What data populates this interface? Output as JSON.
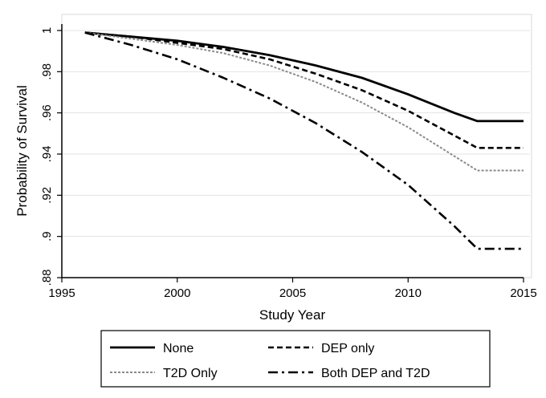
{
  "chart_data": {
    "type": "line",
    "xlabel": "Study Year",
    "ylabel": "Probability of Survival",
    "xlim": [
      1995,
      2015
    ],
    "ylim": [
      0.88,
      1.0
    ],
    "xticks": [
      1995,
      2000,
      2005,
      2010,
      2015
    ],
    "xtick_labels": [
      "1995",
      "2000",
      "2005",
      "2010",
      "2015"
    ],
    "yticks": [
      0.88,
      0.9,
      0.92,
      0.94,
      0.96,
      0.98,
      1.0
    ],
    "ytick_labels": [
      ".88",
      ".9",
      ".92",
      ".94",
      ".96",
      ".98",
      "1"
    ],
    "grid": "horizontal",
    "legend_position": "bottom",
    "series": [
      {
        "name": "None",
        "style": "solid",
        "x": [
          1996,
          1998,
          2000,
          2002,
          2004,
          2006,
          2008,
          2010,
          2012,
          2013,
          2015
        ],
        "y": [
          0.999,
          0.997,
          0.995,
          0.992,
          0.988,
          0.983,
          0.977,
          0.969,
          0.96,
          0.956,
          0.956
        ]
      },
      {
        "name": "DEP only",
        "style": "dash",
        "x": [
          1996,
          1998,
          2000,
          2002,
          2004,
          2006,
          2008,
          2010,
          2012,
          2013,
          2015
        ],
        "y": [
          0.999,
          0.997,
          0.994,
          0.991,
          0.986,
          0.979,
          0.971,
          0.961,
          0.949,
          0.943,
          0.943
        ]
      },
      {
        "name": "T2D Only",
        "style": "dot",
        "x": [
          1996,
          1998,
          2000,
          2002,
          2004,
          2006,
          2008,
          2010,
          2012,
          2013,
          2015
        ],
        "y": [
          0.999,
          0.996,
          0.993,
          0.989,
          0.983,
          0.975,
          0.965,
          0.953,
          0.939,
          0.932,
          0.932
        ]
      },
      {
        "name": "Both DEP and T2D",
        "style": "dashdot",
        "x": [
          1996,
          1998,
          2000,
          2002,
          2004,
          2006,
          2008,
          2010,
          2012,
          2013,
          2015
        ],
        "y": [
          0.999,
          0.993,
          0.986,
          0.977,
          0.967,
          0.955,
          0.941,
          0.925,
          0.905,
          0.894,
          0.894
        ]
      }
    ]
  }
}
